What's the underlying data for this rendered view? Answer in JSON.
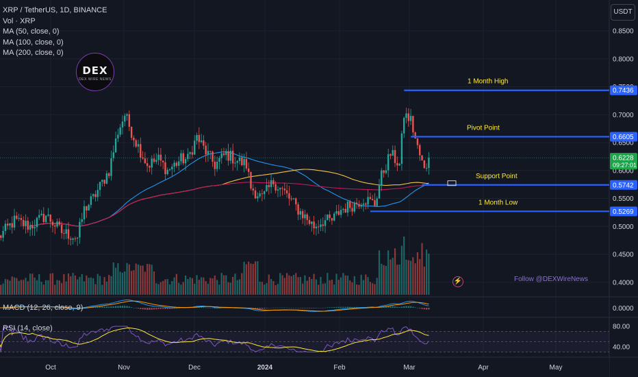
{
  "legend": {
    "symbol": "XRP / TetherUS, 1D, BINANCE",
    "vol": "Vol · XRP",
    "ma50": "MA (50, close, 0)",
    "ma100": "MA (100, close, 0)",
    "ma200": "MA (200, close, 0)"
  },
  "currency_button": "USDT",
  "logo": {
    "text": "DEX",
    "sub": "DEX WIRE NEWS"
  },
  "follow_text": "Follow @DEXWireNews",
  "indicators": {
    "macd_title": "MACD (12, 26, close, 9)",
    "rsi_title": "RSI (14, close)"
  },
  "colors": {
    "background": "#131722",
    "up": "#26a69a",
    "down": "#ef5350",
    "level_line": "#2962ff",
    "level_text": "#ffeb3b",
    "ma50": "#2196f3",
    "ma100": "#f5c242",
    "ma200": "#c2185b",
    "rsi": "#7e57c2",
    "rsi_ma": "#ffeb3b",
    "macd": "#2196f3",
    "signal": "#ff9800"
  },
  "chart_data": [
    {
      "name": "price",
      "type": "candlestick",
      "x_ticks": [
        "Oct",
        "Nov",
        "Dec",
        "2024",
        "Feb",
        "Mar",
        "Apr",
        "May"
      ],
      "y_ticks": [
        "0.8500",
        "0.8000",
        "0.7500",
        "0.7000",
        "0.6500",
        "0.6000",
        "0.5500",
        "0.5000",
        "0.4500",
        "0.4000"
      ],
      "ylim": [
        0.38,
        0.875
      ],
      "keypoints": [
        [
          "2023-09-13",
          0.48
        ],
        [
          "2023-09-20",
          0.51
        ],
        [
          "2023-09-27",
          0.5
        ],
        [
          "2023-10-04",
          0.52
        ],
        [
          "2023-10-11",
          0.49
        ],
        [
          "2023-10-18",
          0.48
        ],
        [
          "2023-10-21",
          0.53
        ],
        [
          "2023-10-25",
          0.55
        ],
        [
          "2023-11-01",
          0.6
        ],
        [
          "2023-11-05",
          0.67
        ],
        [
          "2023-11-08",
          0.7
        ],
        [
          "2023-11-12",
          0.66
        ],
        [
          "2023-11-18",
          0.61
        ],
        [
          "2023-11-23",
          0.62
        ],
        [
          "2023-11-27",
          0.6
        ],
        [
          "2023-12-03",
          0.62
        ],
        [
          "2023-12-06",
          0.62
        ],
        [
          "2023-12-10",
          0.66
        ],
        [
          "2023-12-13",
          0.64
        ],
        [
          "2023-12-18",
          0.61
        ],
        [
          "2023-12-23",
          0.63
        ],
        [
          "2023-12-27",
          0.62
        ],
        [
          "2024-01-01",
          0.61
        ],
        [
          "2024-01-03",
          0.57
        ],
        [
          "2024-01-08",
          0.55
        ],
        [
          "2024-01-13",
          0.58
        ],
        [
          "2024-01-18",
          0.56
        ],
        [
          "2024-01-24",
          0.53
        ],
        [
          "2024-01-31",
          0.5
        ],
        [
          "2024-02-04",
          0.51
        ],
        [
          "2024-02-08",
          0.51
        ],
        [
          "2024-02-12",
          0.53
        ],
        [
          "2024-02-18",
          0.54
        ],
        [
          "2024-02-22",
          0.55
        ],
        [
          "2024-02-27",
          0.54
        ],
        [
          "2024-03-01",
          0.59
        ],
        [
          "2024-03-05",
          0.63
        ],
        [
          "2024-03-09",
          0.61
        ],
        [
          "2024-03-11",
          0.7
        ],
        [
          "2024-03-14",
          0.69
        ],
        [
          "2024-03-17",
          0.64
        ],
        [
          "2024-03-20",
          0.6
        ],
        [
          "2024-03-22",
          0.62
        ]
      ],
      "levels": [
        {
          "label": "1 Month High",
          "value": 0.7436,
          "tag": "0.7436",
          "from": "2024-03-11"
        },
        {
          "label": "Pivot Point",
          "value": 0.6605,
          "tag": "0.6605",
          "from": "2024-03-14"
        },
        {
          "label": "Support Point",
          "value": 0.5742,
          "tag": "0.5742",
          "from": "2024-03-19"
        },
        {
          "label": "1 Month Low",
          "value": 0.5269,
          "tag": "0.5269",
          "from": "2024-02-25"
        }
      ],
      "last_price": {
        "value": 0.6228,
        "tag": "0.6228",
        "countdown": "09:27:01"
      },
      "moving_averages": [
        "MA 50",
        "MA 100",
        "MA 200"
      ]
    },
    {
      "name": "macd",
      "type": "line",
      "y_ticks": [
        "0.0000"
      ],
      "ylim": [
        -0.02,
        0.025
      ]
    },
    {
      "name": "rsi",
      "type": "line",
      "y_ticks": [
        "80.00",
        "40.00"
      ],
      "ylim": [
        25,
        90
      ],
      "bands": [
        70,
        50,
        30
      ]
    }
  ]
}
